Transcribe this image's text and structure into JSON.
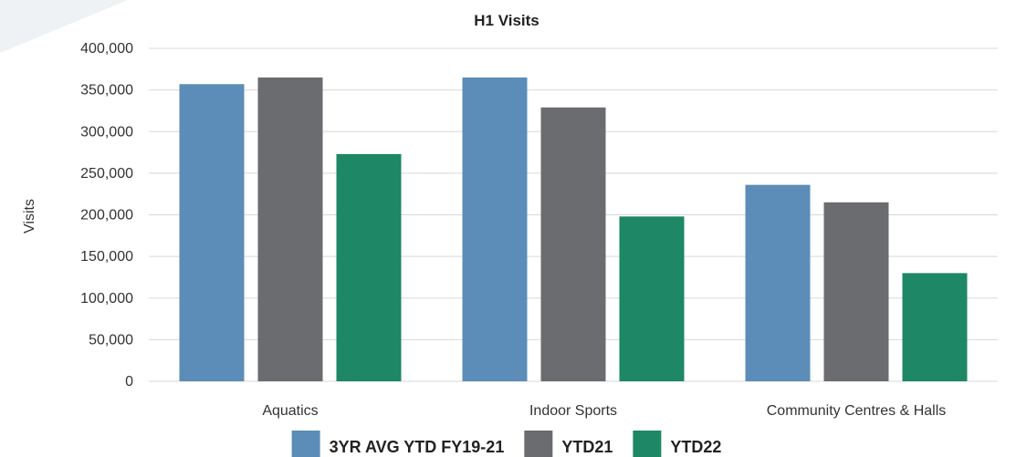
{
  "chart_data": {
    "type": "bar",
    "title": "H1 Visits",
    "xlabel": "",
    "ylabel": "Visits",
    "categories": [
      "Aquatics",
      "Indoor Sports",
      "Community Centres & Halls"
    ],
    "series": [
      {
        "name": "3YR AVG YTD FY19-21",
        "color": "#5b8db8",
        "values": [
          357000,
          365000,
          236000
        ]
      },
      {
        "name": "YTD21",
        "color": "#6b6c6f",
        "values": [
          365000,
          329000,
          215000
        ]
      },
      {
        "name": "YTD22",
        "color": "#1e8765",
        "values": [
          273000,
          198000,
          130000
        ]
      }
    ],
    "ylim": [
      0,
      400000
    ],
    "yticks": [
      "0",
      "50,000",
      "100,000",
      "150,000",
      "200,000",
      "250,000",
      "300,000",
      "350,000",
      "400,000"
    ],
    "grid": true,
    "legend_position": "bottom",
    "decoration_color": "#eef2f5"
  }
}
